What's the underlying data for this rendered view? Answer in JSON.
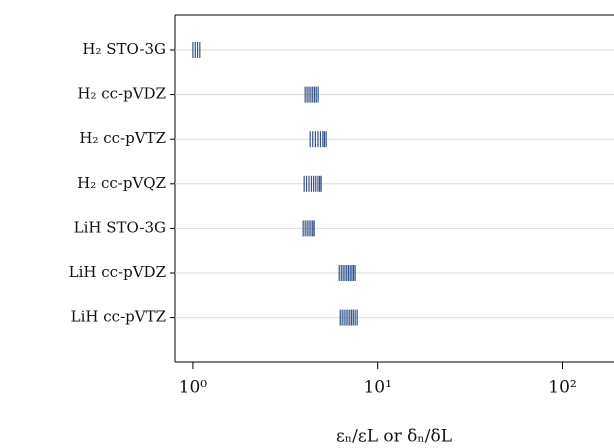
{
  "chart_data": {
    "type": "rug",
    "categories": [
      "H₂ STO-3G",
      "H₂ cc-pVDZ",
      "H₂ cc-pVTZ",
      "H₂ cc-pVQZ",
      "LiH STO-3G",
      "LiH cc-pVDZ",
      "LiH cc-pVTZ"
    ],
    "values": [
      [
        1.0,
        1.03,
        1.06,
        1.09
      ],
      [
        4.05,
        4.15,
        4.25,
        4.35,
        4.45,
        4.55,
        4.65,
        4.76
      ],
      [
        4.31,
        4.45,
        4.6,
        4.75,
        4.9,
        5.05,
        5.15,
        5.26
      ],
      [
        4.0,
        4.12,
        4.25,
        4.38,
        4.5,
        4.62,
        4.75,
        4.85,
        4.94
      ],
      [
        3.95,
        4.05,
        4.15,
        4.25,
        4.35,
        4.45,
        4.53
      ],
      [
        6.19,
        6.35,
        6.5,
        6.65,
        6.8,
        6.95,
        7.1,
        7.25,
        7.4,
        7.55
      ],
      [
        6.27,
        6.42,
        6.58,
        6.74,
        6.9,
        7.06,
        7.22,
        7.38,
        7.55,
        7.74
      ]
    ],
    "color": "#34538a",
    "xlabel": "εₙ/εL   or   δₙ/δL",
    "log_x": true,
    "xlim": [
      0.8,
      190
    ],
    "xticks": [
      {
        "value": 1,
        "label": "10⁰"
      },
      {
        "value": 10,
        "label": "10¹"
      },
      {
        "value": 100,
        "label": "10²"
      }
    ],
    "grid": true
  }
}
